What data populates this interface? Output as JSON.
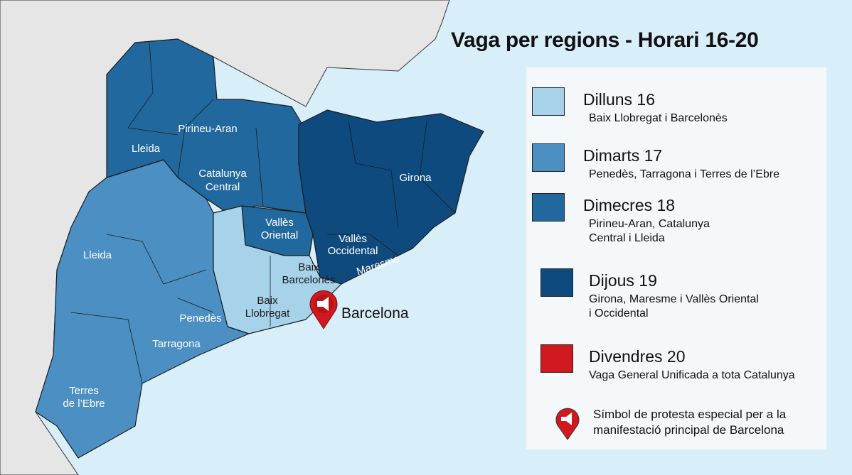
{
  "title": "Vaga per regions - Horari 16-20",
  "colors": {
    "dilluns": "#a6d3ea",
    "dimarts": "#4b8fc3",
    "dimecres": "#21689f",
    "dijous": "#0e4a7e",
    "divendres": "#d0191e",
    "land": "#e6e6e6",
    "sea": "#d8eef9"
  },
  "legend": [
    {
      "day": "Dilluns 16",
      "desc": [
        "Baix Llobregat i Barcelonès"
      ]
    },
    {
      "day": "Dimarts 17",
      "desc": [
        "Penedès, Tarragona i Terres de l’Ebre"
      ]
    },
    {
      "day": "Dimecres 18",
      "desc": [
        "Pirineu-Aran, Catalunya",
        "Central i Lleida"
      ]
    },
    {
      "day": "Dijous 19",
      "desc": [
        "Girona, Maresme i Vallès Oriental",
        "i Occidental"
      ]
    },
    {
      "day": "Divendres 20",
      "desc": [
        "Vaga General Unificada a tota Catalunya"
      ]
    }
  ],
  "symbol": {
    "icon": "megaphone-pin-icon",
    "text": [
      "Símbol de protesta especial per a la",
      "manifestació principal de Barcelona"
    ]
  },
  "map_labels": {
    "lleida_north": "Lleida",
    "pirineu": "Pirineu-Aran",
    "catalunya_central": [
      "Catalunya",
      "Central"
    ],
    "girona": "Girona",
    "valles_oriental": [
      "Vallès",
      "Oriental"
    ],
    "valles_occidental": [
      "Vallès",
      "Occidental"
    ],
    "maresme": "Maresme",
    "baix_barcelones": [
      "Baix",
      "Barcelonès"
    ],
    "baix_llobregat": [
      "Baix",
      "Llobregat"
    ],
    "barcelona": "Barcelona",
    "lleida_south": "Lleida",
    "penedes": "Penedès",
    "tarragona": "Tarragona",
    "terres_ebre": [
      "Terres",
      "de l’Ebre"
    ]
  }
}
